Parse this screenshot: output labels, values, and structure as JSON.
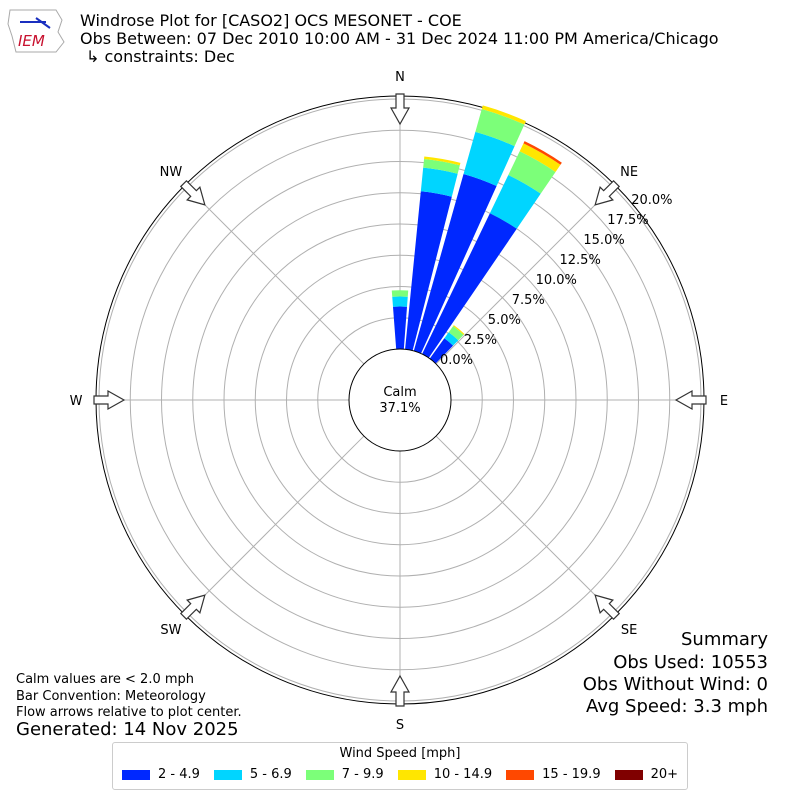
{
  "header": {
    "title": "Windrose Plot for [CASO2] OCS MESONET - COE",
    "period": "Obs Between: 07 Dec 2010 10:00 AM - 31 Dec 2024 11:00 PM America/Chicago",
    "constraints": "↳ constraints: Dec",
    "logo_text": "IEM"
  },
  "notes": {
    "calm": "Calm values are < 2.0 mph",
    "convention": "Bar Convention: Meteorology",
    "flow": "Flow arrows relative to plot center.",
    "generated": "Generated: 14 Nov 2025"
  },
  "summary": {
    "title": "Summary",
    "obs_used": "Obs Used: 10553",
    "obs_without_wind": "Obs Without Wind: 0",
    "avg_speed": "Avg Speed: 3.3 mph"
  },
  "chart_data": {
    "type": "windrose",
    "calm_label": "Calm",
    "calm_value": "37.1%",
    "directions": [
      "N",
      "NE",
      "E",
      "SE",
      "S",
      "SW",
      "W",
      "NW"
    ],
    "radial_ticks": [
      "0.0%",
      "2.5%",
      "5.0%",
      "7.5%",
      "10.0%",
      "12.5%",
      "15.0%",
      "17.5%",
      "20.0%"
    ],
    "rmax": 20.3,
    "grid": true,
    "legend_title": "Wind Speed [mph]",
    "legend_placement": "bottom",
    "bins": [
      {
        "label": "2 - 4.9",
        "color": "#0028ff"
      },
      {
        "label": "5 - 6.9",
        "color": "#00d5ff"
      },
      {
        "label": "7 - 9.9",
        "color": "#7cff79"
      },
      {
        "label": "10 - 14.9",
        "color": "#ffe600"
      },
      {
        "label": "15 - 19.9",
        "color": "#ff4800"
      },
      {
        "label": "20+",
        "color": "#800000"
      }
    ],
    "bars": [
      {
        "direction_deg": 0,
        "values": [
          3.4,
          0.8,
          0.5,
          0.0,
          0.0,
          0.0
        ]
      },
      {
        "direction_deg": 10,
        "values": [
          12.7,
          1.9,
          0.7,
          0.2,
          0.0,
          0.0
        ]
      },
      {
        "direction_deg": 20,
        "values": [
          14.7,
          3.5,
          1.9,
          0.3,
          0.0,
          0.0
        ]
      },
      {
        "direction_deg": 30,
        "values": [
          12.5,
          3.4,
          2.1,
          0.7,
          0.2,
          0.0
        ]
      },
      {
        "direction_deg": 40,
        "values": [
          2.0,
          0.6,
          0.6,
          0.1,
          0.0,
          0.0
        ]
      }
    ]
  }
}
